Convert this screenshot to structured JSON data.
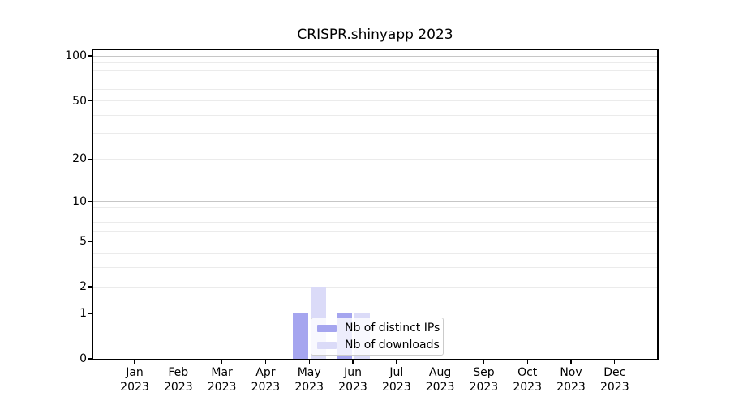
{
  "title": "CRISPR.shinyapp 2023",
  "legend": {
    "items": [
      {
        "label": "Nb of distinct IPs",
        "color": "#a5a5ef"
      },
      {
        "label": "Nb of downloads",
        "color": "#dbdbf8"
      }
    ]
  },
  "x_axis": {
    "months": [
      "Jan",
      "Feb",
      "Mar",
      "Apr",
      "May",
      "Jun",
      "Jul",
      "Aug",
      "Sep",
      "Oct",
      "Nov",
      "Dec"
    ],
    "year": "2023"
  },
  "y_axis": {
    "tick_values": [
      0,
      1,
      2,
      5,
      10,
      20,
      50,
      100
    ],
    "tick_labels": [
      "0",
      "1",
      "2",
      "5",
      "10",
      "20",
      "50",
      "100"
    ]
  },
  "colors": {
    "ips_bar": "#a5a5ef",
    "downloads_bar": "#dbdbf8",
    "grid_minor": "#ebebeb",
    "grid_major": "#c6c6c6",
    "spine": "#000000",
    "legend_border": "#cbcbcb"
  },
  "chart_data": {
    "type": "bar",
    "title": "CRISPR.shinyapp 2023",
    "categories": [
      "Jan 2023",
      "Feb 2023",
      "Mar 2023",
      "Apr 2023",
      "May 2023",
      "Jun 2023",
      "Jul 2023",
      "Aug 2023",
      "Sep 2023",
      "Oct 2023",
      "Nov 2023",
      "Dec 2023"
    ],
    "series": [
      {
        "name": "Nb of distinct IPs",
        "color": "#a5a5ef",
        "values": [
          0,
          0,
          0,
          0,
          1,
          1,
          0,
          0,
          0,
          0,
          0,
          0
        ]
      },
      {
        "name": "Nb of downloads",
        "color": "#dbdbf8",
        "values": [
          0,
          0,
          0,
          0,
          2,
          1,
          0,
          0,
          0,
          0,
          0,
          0
        ]
      }
    ],
    "xlabel": "",
    "ylabel": "",
    "y_scale": "log1p",
    "ylim": [
      0,
      110
    ],
    "y_ticks": [
      0,
      1,
      2,
      5,
      10,
      20,
      50,
      100
    ],
    "y_gridlines_minor": [
      2,
      3,
      4,
      5,
      6,
      7,
      8,
      9,
      20,
      30,
      40,
      50,
      60,
      70,
      80,
      90
    ],
    "y_gridlines_major": [
      1,
      10,
      100
    ],
    "grid": true,
    "legend_position": "inside-bottom-center"
  }
}
